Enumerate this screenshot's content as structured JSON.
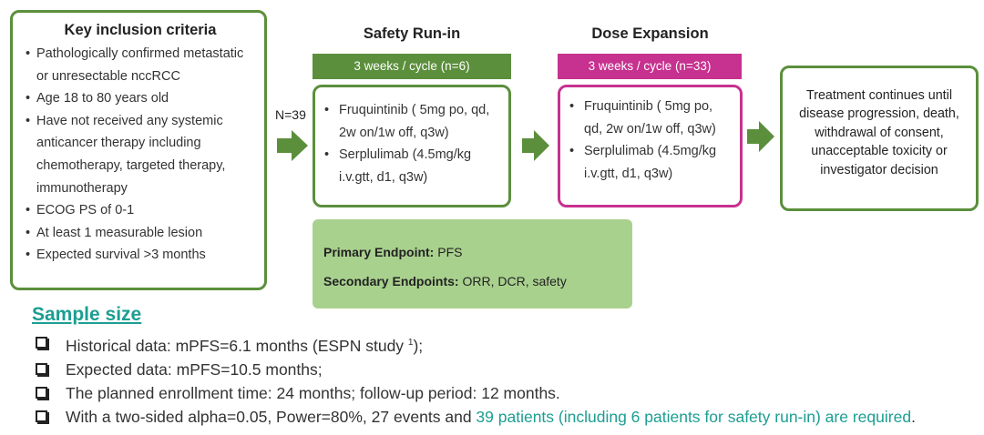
{
  "criteria": {
    "title": "Key inclusion criteria",
    "items": [
      "Pathologically confirmed metastatic or unresectable nccRCC",
      "Age 18 to 80 years old",
      "Have not received any systemic anticancer therapy including chemotherapy, targeted therapy, immunotherapy",
      "ECOG PS of 0-1",
      "At least 1 measurable lesion",
      "Expected  survival  >3 months"
    ]
  },
  "n_label": "N=39",
  "safety": {
    "title": "Safety Run-in",
    "banner": "3 weeks / cycle (n=6)",
    "items": [
      "Fruquintinib ( 5mg po, qd, 2w on/1w off, q3w)",
      "Serplulimab (4.5mg/kg i.v.gtt, d1, q3w)"
    ]
  },
  "expansion": {
    "title": "Dose Expansion",
    "banner": "3 weeks / cycle (n=33)",
    "items": [
      "Fruquintinib ( 5mg po, qd, 2w on/1w off, q3w)",
      "Serplulimab (4.5mg/kg i.v.gtt,  d1, q3w)"
    ]
  },
  "treatment": "Treatment continues until disease progression, death, withdrawal of consent, unacceptable toxicity or investigator decision",
  "endpoints": {
    "primary_label": "Primary Endpoint:",
    "primary_value": "PFS",
    "secondary_label": "Secondary Endpoints:",
    "secondary_value": "ORR, DCR, safety"
  },
  "sample": {
    "title": "Sample size",
    "items": [
      {
        "text": "Historical data: mPFS=6.1 months (ESPN study ",
        "sup": "1",
        "tail": ");"
      },
      {
        "text": "Expected data: mPFS=10.5 months;"
      },
      {
        "text": "The planned enrollment time: 24 months; follow-up period: 12 months."
      },
      {
        "text": "With a two-sided alpha=0.05, Power=80%, 27 events and ",
        "highlight": "39 patients (including 6 patients for safety run-in) are required",
        "tail": "."
      }
    ]
  },
  "colors": {
    "green": "#5b8f3c",
    "pink": "#c7318f",
    "light_green": "#a9d18e",
    "teal": "#1c9e91"
  }
}
